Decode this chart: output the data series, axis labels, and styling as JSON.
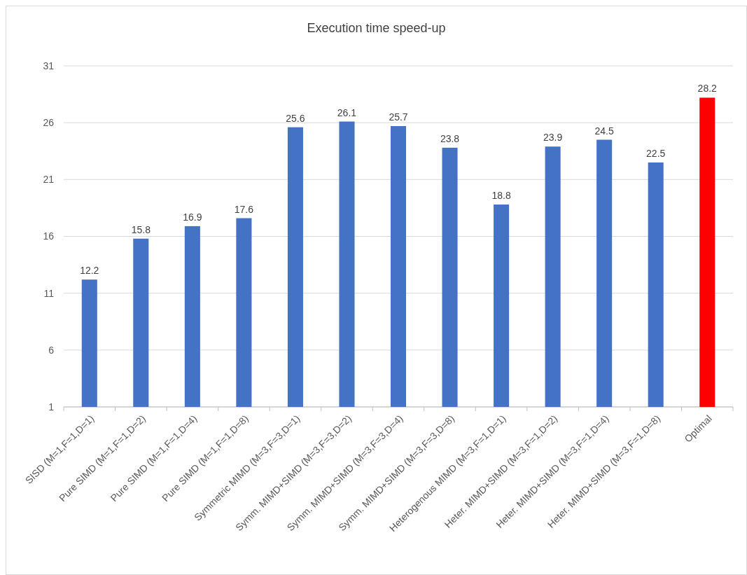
{
  "chart_data": {
    "type": "bar",
    "title": "Execution time speed-up",
    "categories": [
      "SISD (M=1,F=1,D=1)",
      "Pure SIMD (M=1,F=1,D=2)",
      "Pure SIMD (M=1,F=1,D=4)",
      "Pure SIMD (M=1,F=1,D=8)",
      "Symmetric MIMD (M=3,F=3,D=1)",
      "Symm. MIMD+SIMD (M=3,F=3,D=2)",
      "Symm. MIMD+SIMD (M=3,F=3,D=4)",
      "Symm. MIMD+SIMD (M=3,F=3,D=8)",
      "Heterogenous MIMD (M=3,F=1,D=1)",
      "Heter. MIMD+SIMD (M=3,F=1,D=2)",
      "Heter. MIMD+SIMD (M=3,F=1,D=4)",
      "Heter. MIMD+SIMD (M=3,F=1,D=8)",
      "Optimal"
    ],
    "values": [
      12.2,
      15.8,
      16.9,
      17.6,
      25.6,
      26.1,
      25.7,
      23.8,
      18.8,
      23.9,
      24.5,
      22.5,
      28.2
    ],
    "colors": [
      "#4472c4",
      "#4472c4",
      "#4472c4",
      "#4472c4",
      "#4472c4",
      "#4472c4",
      "#4472c4",
      "#4472c4",
      "#4472c4",
      "#4472c4",
      "#4472c4",
      "#4472c4",
      "#ff0000"
    ],
    "ylim": [
      1,
      31
    ],
    "yticks": [
      1,
      6,
      11,
      16,
      21,
      26,
      31
    ],
    "grid": "y",
    "data_labels": true
  }
}
